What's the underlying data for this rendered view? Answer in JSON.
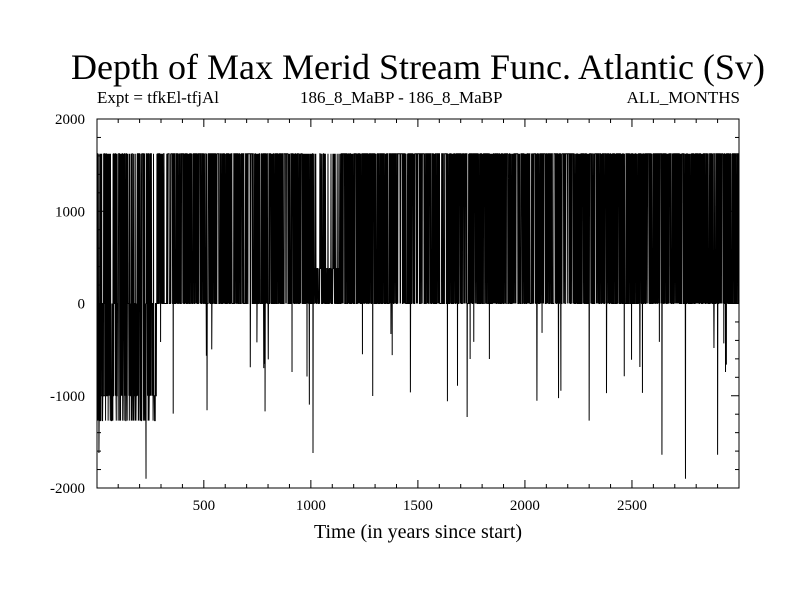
{
  "header": {
    "title": "Depth of Max Merid Stream Func. Atlantic (Sv)",
    "left": "Expt = tfkEl-tfjAl",
    "center": "186_8_MaBP - 186_8_MaBP",
    "right": "ALL_MONTHS"
  },
  "chart_data": {
    "type": "line",
    "title": "Depth of Max Merid Stream Func. Atlantic (Sv)",
    "xlabel": "Time (in years since start)",
    "ylabel": "",
    "xlim": [
      1,
      3000
    ],
    "ylim": [
      -2000,
      2000
    ],
    "x_ticks": [
      500,
      1000,
      1500,
      2000,
      2500
    ],
    "y_ticks": [
      2000,
      1000,
      0,
      -1000,
      -2000
    ],
    "x_tick_labels": [
      "500",
      "1000",
      "1500",
      "2000",
      "2500"
    ],
    "y_tick_labels": [
      "2000",
      "1000",
      "0",
      "-1000",
      "-2000"
    ],
    "value_levels": [
      1624,
      0,
      -1000
    ],
    "series": [
      {
        "name": "",
        "color": "#000000",
        "description_points": {
          "x": [
            1,
            10,
            20,
            30,
            40,
            50,
            60,
            70,
            80,
            90,
            100,
            120,
            140,
            160,
            180,
            200,
            230,
            250,
            300,
            400,
            600,
            780,
            1000,
            1010,
            1150,
            1300,
            1500,
            1730,
            1900,
            2200,
            2300,
            2400,
            2500,
            2580,
            2640,
            2750,
            2800,
            2900,
            3000
          ],
          "y": [
            0,
            -1620,
            1624,
            -1000,
            1624,
            -1000,
            0,
            -1270,
            1624,
            -1000,
            -1270,
            1624,
            -1000,
            0,
            -1270,
            1624,
            -1900,
            1624,
            0,
            1624,
            0,
            -700,
            1624,
            -1620,
            1624,
            0,
            1624,
            -1230,
            0,
            1624,
            -1270,
            1624,
            0,
            1624,
            -1640,
            -1900,
            1624,
            -1640,
            0
          ]
        }
      }
    ]
  }
}
